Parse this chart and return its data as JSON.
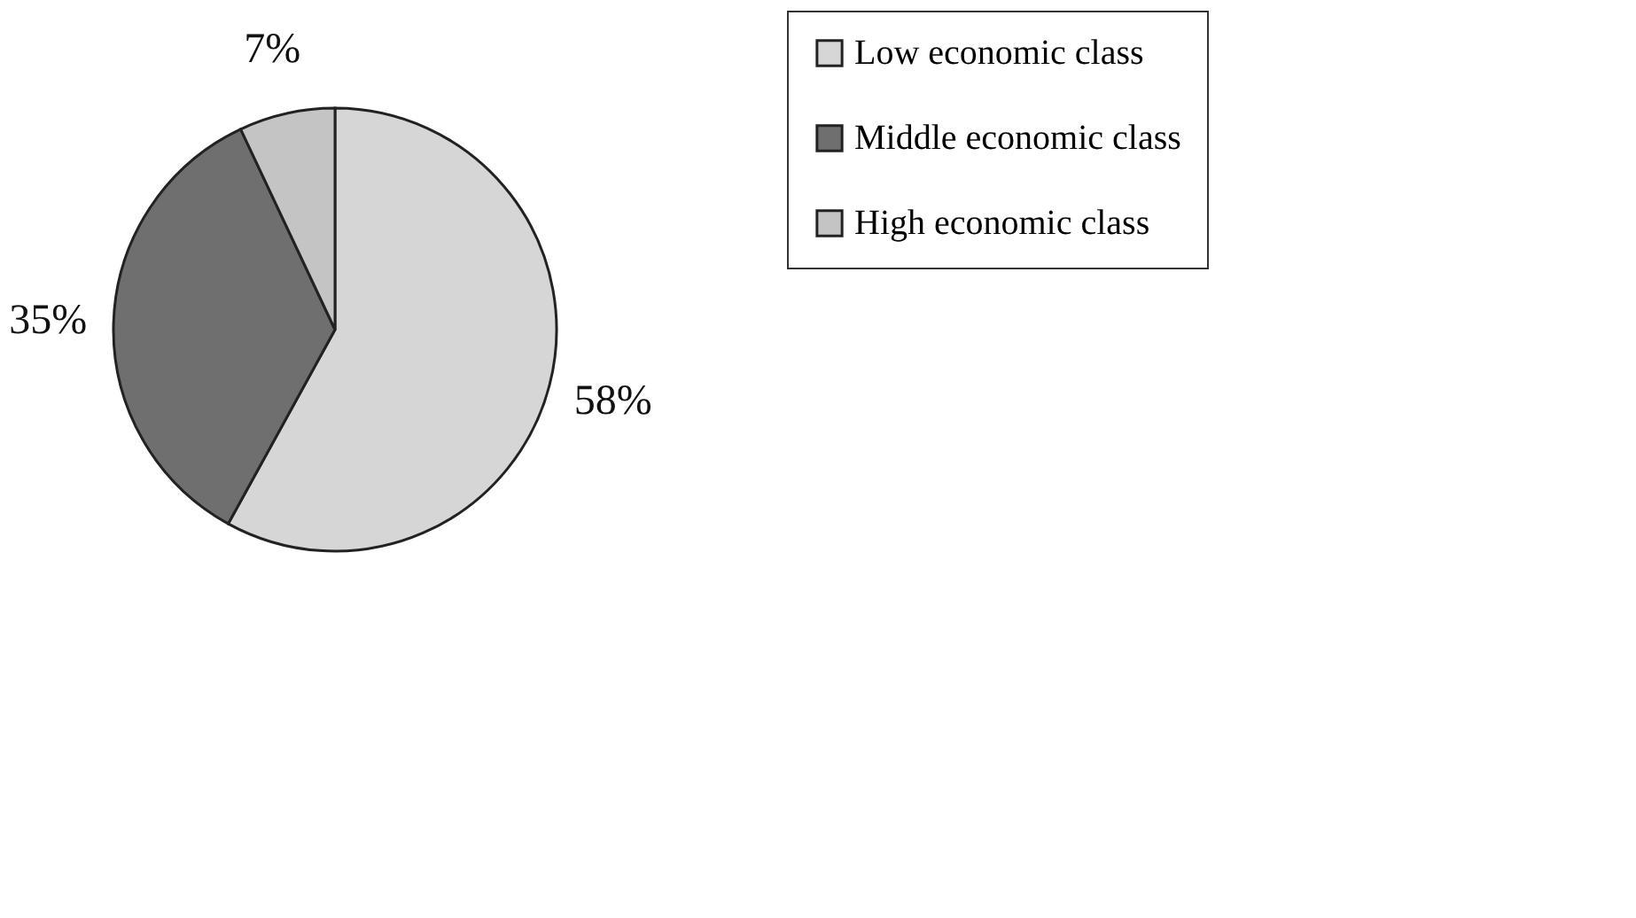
{
  "chart_data": {
    "type": "pie",
    "categories": [
      "Low economic class",
      "Middle economic class",
      "High economic class"
    ],
    "values": [
      58,
      35,
      7
    ],
    "value_labels": [
      "58%",
      "35%",
      "7%"
    ],
    "colors": [
      "#d6d6d6",
      "#6f6f6f",
      "#c4c4c4"
    ],
    "legend": "right"
  }
}
